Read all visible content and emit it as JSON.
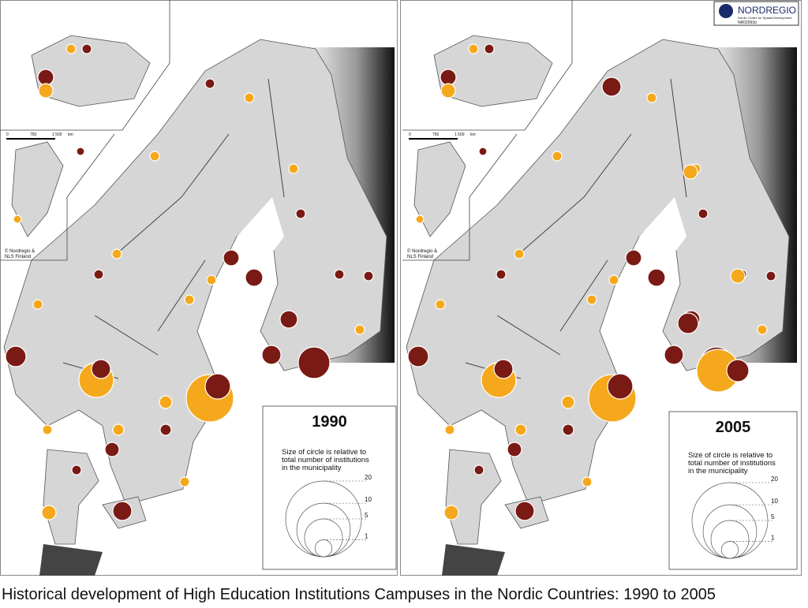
{
  "maps": [
    {
      "year": "1990",
      "legend": {
        "lines": [
          "Size of circle is relative to",
          "total number of institutions",
          "in the municipality"
        ],
        "values": [
          20,
          10,
          5,
          1
        ]
      },
      "scale": [
        "0",
        "750",
        "1 500",
        "km"
      ],
      "credit": [
        "© Nordregio &",
        "NLS Finland"
      ]
    },
    {
      "year": "2005",
      "legend": {
        "lines": [
          "Size of circle is relative to",
          "total number of institutions",
          "in the municipality"
        ],
        "values": [
          20,
          10,
          5,
          1
        ]
      },
      "scale": [
        "0",
        "750",
        "1 500",
        "km"
      ],
      "credit": [
        "© Nordregio &",
        "NLS Finland"
      ]
    }
  ],
  "logo": {
    "name": "NORDREGIO",
    "subtitle": "Nordic Centre for Spatial Development",
    "code": "NR02991b"
  },
  "caption": "Historical development of High Education Institutions Campuses in the Nordic Countries: 1990 to 2005"
}
